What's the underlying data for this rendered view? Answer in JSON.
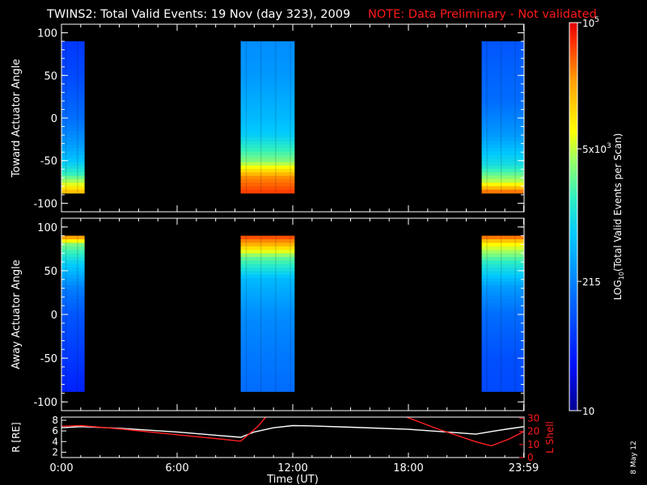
{
  "header": {
    "title": "TWINS2: Total Valid Events: 19 Nov (day 323), 2009",
    "note": "NOTE: Data Preliminary - Not validated"
  },
  "footer": {
    "date_stamp": "8 May 12"
  },
  "colorbar": {
    "label": "LOG10(Total Valid Events per Scan)",
    "ticks": [
      {
        "label": "10^5",
        "value": 100000
      },
      {
        "label": "5x10^3",
        "value": 5000
      },
      {
        "label": "215",
        "value": 215
      },
      {
        "label": "10",
        "value": 10
      }
    ],
    "range": [
      10,
      100000
    ]
  },
  "chart_data": [
    {
      "type": "heatmap",
      "panel": "toward",
      "ylabel": "Toward Actuator Angle",
      "ylim": [
        -110,
        110
      ],
      "yticks": [
        100,
        50,
        0,
        -50,
        -100
      ],
      "xlim": [
        0,
        24
      ],
      "x_unit": "hours UT",
      "data_blocks": [
        {
          "x_start": 0.0,
          "x_end": 1.2,
          "y_start": -88,
          "y_end": 90,
          "profile": [
            [
              -88,
              20000
            ],
            [
              -80,
              8000
            ],
            [
              -65,
              1500
            ],
            [
              -50,
              600
            ],
            [
              -30,
              300
            ],
            [
              0,
              150
            ],
            [
              50,
              80
            ],
            [
              90,
              60
            ]
          ]
        },
        {
          "x_start": 9.3,
          "x_end": 12.1,
          "y_start": -88,
          "y_end": 90,
          "profile": [
            [
              -88,
              60000
            ],
            [
              -70,
              30000
            ],
            [
              -50,
              3000
            ],
            [
              -20,
              700
            ],
            [
              0,
              500
            ],
            [
              50,
              300
            ],
            [
              90,
              250
            ]
          ]
        },
        {
          "x_start": 21.8,
          "x_end": 24.0,
          "y_start": -88,
          "y_end": 90,
          "profile": [
            [
              -88,
              50000
            ],
            [
              -75,
              5000
            ],
            [
              -55,
              1000
            ],
            [
              -20,
              300
            ],
            [
              20,
              150
            ],
            [
              90,
              100
            ]
          ]
        }
      ]
    },
    {
      "type": "heatmap",
      "panel": "away",
      "ylabel": "Away Actuator Angle",
      "ylim": [
        -110,
        110
      ],
      "yticks": [
        100,
        50,
        0,
        -50,
        -100
      ],
      "xlim": [
        0,
        24
      ],
      "x_unit": "hours UT",
      "data_blocks": [
        {
          "x_start": 0.0,
          "x_end": 1.2,
          "y_start": -88,
          "y_end": 90,
          "profile": [
            [
              90,
              40000
            ],
            [
              80,
              3000
            ],
            [
              60,
              800
            ],
            [
              30,
              200
            ],
            [
              0,
              100
            ],
            [
              -50,
              60
            ],
            [
              -88,
              40
            ]
          ]
        },
        {
          "x_start": 9.3,
          "x_end": 12.1,
          "y_start": -88,
          "y_end": 90,
          "profile": [
            [
              90,
              60000
            ],
            [
              80,
              20000
            ],
            [
              65,
              2500
            ],
            [
              40,
              500
            ],
            [
              0,
              250
            ],
            [
              -50,
              180
            ],
            [
              -88,
              150
            ]
          ]
        },
        {
          "x_start": 21.8,
          "x_end": 24.0,
          "y_start": -88,
          "y_end": 90,
          "profile": [
            [
              90,
              50000
            ],
            [
              80,
              8000
            ],
            [
              60,
              1500
            ],
            [
              30,
              300
            ],
            [
              0,
              150
            ],
            [
              -50,
              90
            ],
            [
              -88,
              80
            ]
          ]
        }
      ]
    },
    {
      "type": "line",
      "panel": "orbit",
      "xlabel": "Time (UT)",
      "xticks": [
        {
          "value": 0,
          "label": "0:00"
        },
        {
          "value": 6,
          "label": "6:00"
        },
        {
          "value": 12,
          "label": "12:00"
        },
        {
          "value": 18,
          "label": "18:00"
        },
        {
          "value": 23.98,
          "label": "23:59"
        }
      ],
      "xlim": [
        0,
        24
      ],
      "left_axis": {
        "label": "R [RE]",
        "ylim": [
          1,
          8.6
        ],
        "ticks": [
          2,
          4,
          6,
          8
        ]
      },
      "right_axis": {
        "label": "L Shell",
        "ylim": [
          0,
          31
        ],
        "ticks": [
          0,
          10,
          20,
          30
        ]
      },
      "series": [
        {
          "name": "R [RE]",
          "axis": "left",
          "color": "#ffffff",
          "x": [
            0,
            1,
            3,
            6,
            8,
            9.3,
            10,
            11,
            12,
            13,
            15,
            18,
            20,
            21.5,
            22.5,
            23.2,
            24
          ],
          "y": [
            6.6,
            6.8,
            6.5,
            5.8,
            5.2,
            4.8,
            5.8,
            6.6,
            7.0,
            6.95,
            6.7,
            6.3,
            5.8,
            5.4,
            6.0,
            6.4,
            6.8
          ]
        },
        {
          "name": "L Shell",
          "axis": "right",
          "color": "#ff2020",
          "x": [
            0,
            1,
            3,
            6,
            8,
            9.3,
            10.2,
            10.6
          ],
          "y": [
            24,
            24.5,
            22,
            17.5,
            14.5,
            12.5,
            24,
            31
          ]
        },
        {
          "name": "L Shell",
          "axis": "right",
          "color": "#ff2020",
          "x": [
            17.9,
            19.5,
            21.5,
            22.3,
            23.2,
            24
          ],
          "y": [
            31,
            22,
            12,
            9,
            14,
            20
          ]
        }
      ]
    }
  ]
}
